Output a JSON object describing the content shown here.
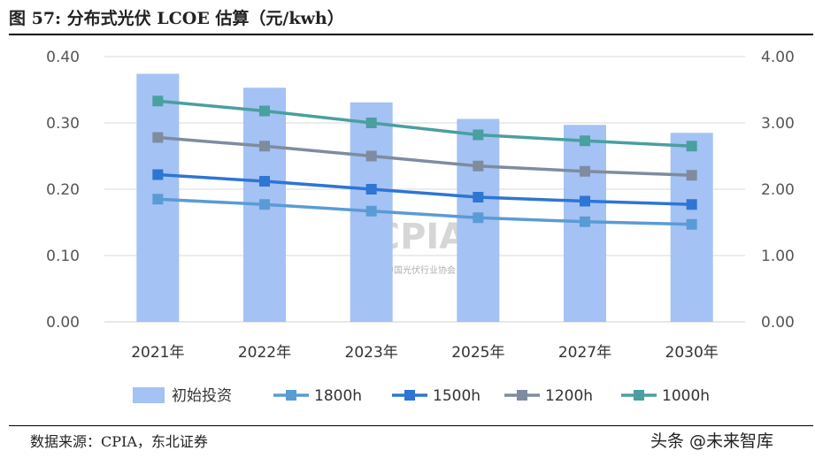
{
  "title": "图 57:  分布式光伏 LCOE 估算（元/kwh）",
  "source": "数据来源：CPIA，东北证券",
  "credit": "头条 @未来智库",
  "watermark": {
    "logo": "CPIA",
    "sub": "中国光伏行业协会"
  },
  "colors": {
    "bar": "#a4c2f4",
    "s1800": "#5b9bd5",
    "s1500": "#2e75d4",
    "s1200": "#7f8c9f",
    "s1000": "#4a9fa0"
  },
  "chart_data": {
    "type": "bar+line",
    "categories": [
      "2021年",
      "2022年",
      "2023年",
      "2025年",
      "2027年",
      "2030年"
    ],
    "left_axis": {
      "min": 0,
      "max": 0.4,
      "ticks": [
        "0.00",
        "0.10",
        "0.20",
        "0.30",
        "0.40"
      ]
    },
    "right_axis": {
      "min": 0,
      "max": 4.0,
      "ticks": [
        "0.00",
        "1.00",
        "2.00",
        "3.00",
        "4.00"
      ]
    },
    "bars": {
      "name": "初始投资",
      "axis": "right",
      "values": [
        3.74,
        3.53,
        3.31,
        3.06,
        2.97,
        2.85
      ]
    },
    "series": [
      {
        "name": "1800h",
        "axis": "left",
        "color_key": "s1800",
        "values": [
          0.185,
          0.177,
          0.167,
          0.157,
          0.151,
          0.147
        ]
      },
      {
        "name": "1500h",
        "axis": "left",
        "color_key": "s1500",
        "values": [
          0.222,
          0.212,
          0.2,
          0.188,
          0.182,
          0.177
        ]
      },
      {
        "name": "1200h",
        "axis": "left",
        "color_key": "s1200",
        "values": [
          0.278,
          0.265,
          0.25,
          0.235,
          0.227,
          0.221
        ]
      },
      {
        "name": "1000h",
        "axis": "left",
        "color_key": "s1000",
        "values": [
          0.333,
          0.318,
          0.3,
          0.282,
          0.273,
          0.265
        ]
      }
    ],
    "grid": true,
    "legend_position": "bottom"
  }
}
